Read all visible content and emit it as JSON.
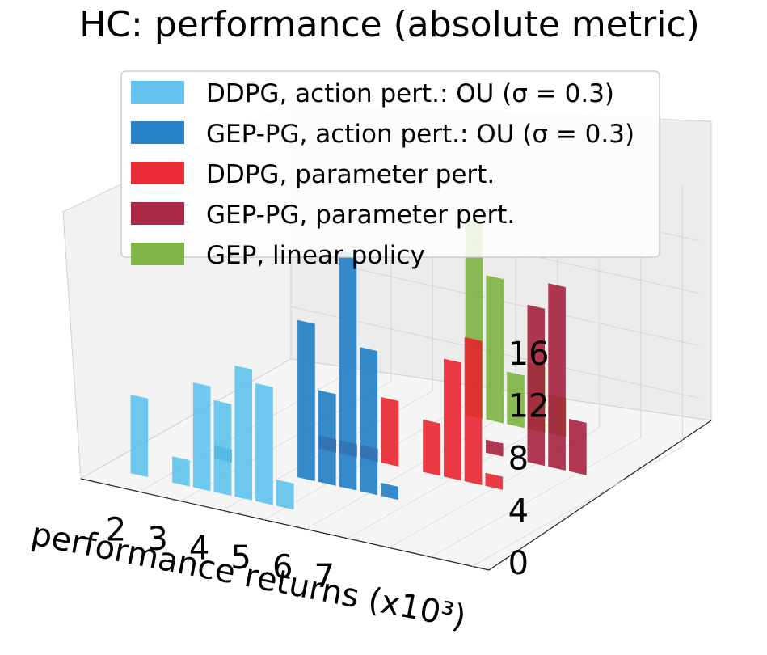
{
  "chart_data": {
    "type": "bar3d",
    "title": "HC: performance (absolute metric)",
    "xlabel": "performance returns (x10³)",
    "ylabel": "",
    "zlabel": "",
    "x_ticks": [
      "2",
      "3",
      "4",
      "5",
      "6",
      "7"
    ],
    "z_ticks": [
      "0",
      "4",
      "8",
      "12",
      "16"
    ],
    "zlim": [
      0,
      20
    ],
    "series": [
      {
        "name": "DDPG, action pert.: OU (σ = 0.3)",
        "color": "#5bc0eb",
        "x": [
          1.5,
          2.5,
          3.0,
          3.5,
          4.0,
          4.5,
          5.0
        ],
        "values": [
          6,
          2,
          8,
          7,
          10,
          9,
          2
        ]
      },
      {
        "name": "GEP-PG, action pert.: OU (σ = 0.3)",
        "color": "#1a7cc4",
        "x": [
          2.5,
          4.5,
          5.0,
          5.5,
          6.0,
          6.5
        ],
        "values": [
          1,
          12,
          7,
          18,
          11,
          1
        ]
      },
      {
        "name": "DDPG, parameter pert.",
        "color": "#e8202a",
        "x": [
          4.0,
          4.5,
          5.0,
          5.5,
          6.5,
          7.0,
          7.5,
          8.0
        ],
        "values": [
          1,
          1,
          1,
          5,
          4,
          9,
          11,
          1
        ]
      },
      {
        "name": "GEP-PG, parameter pert.",
        "color": "#a51d3a",
        "x": [
          7.0,
          8.0,
          8.5,
          9.0
        ],
        "values": [
          1,
          12,
          14,
          4
        ]
      },
      {
        "name": "GEP, linear policy",
        "color": "#7ab03c",
        "x": [
          5.5,
          6.0,
          6.5,
          7.0,
          7.5
        ],
        "values": [
          15,
          11,
          4,
          5,
          3
        ]
      }
    ],
    "legend": [
      "DDPG, action pert.: OU (σ = 0.3)",
      "GEP-PG, action pert.: OU (σ = 0.3)",
      "DDPG, parameter pert.",
      "GEP-PG, parameter pert.",
      "GEP, linear policy"
    ],
    "legend_position": "top-center",
    "grid": true
  }
}
